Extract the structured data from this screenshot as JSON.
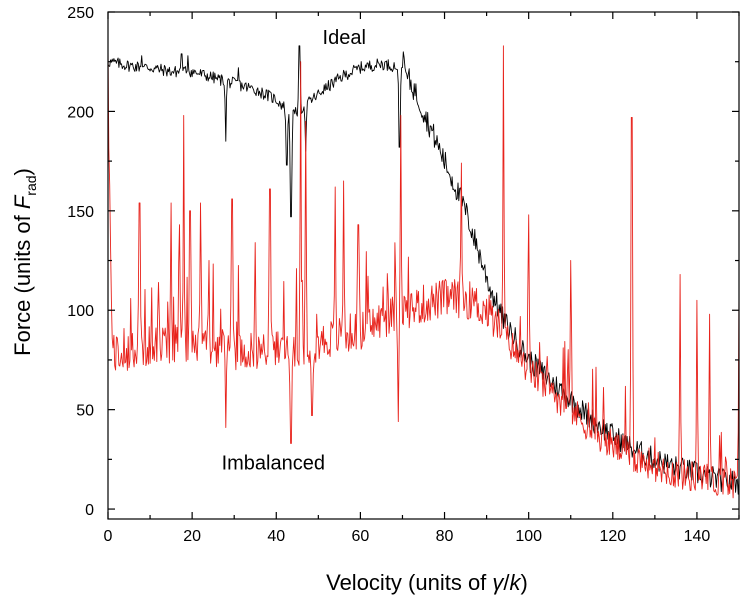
{
  "chart_data": {
    "type": "line",
    "title": "",
    "xlabel": {
      "prefix": "Velocity (units of ",
      "gamma": "γ",
      "slash": "/",
      "k": "k",
      "suffix": ")"
    },
    "ylabel": {
      "prefix": "Force (units of ",
      "F": "F",
      "sub": "rad",
      "suffix": ")"
    },
    "xlim": [
      0,
      150
    ],
    "ylim": [
      -5,
      250
    ],
    "xticks": [
      0,
      20,
      40,
      60,
      80,
      100,
      120,
      140
    ],
    "yticks": [
      0,
      50,
      100,
      150,
      200,
      250
    ],
    "grid": false,
    "legend": "none",
    "annotations": [
      {
        "text": "Ideal",
        "x": 51,
        "y": 234
      },
      {
        "text": "Imbalanced",
        "x": 27,
        "y": 20
      }
    ],
    "series": [
      {
        "label": "Ideal",
        "color": "#000000",
        "base": {
          "x": [
            0,
            5,
            10,
            15,
            20,
            25,
            30,
            35,
            40,
            44,
            48,
            52,
            56,
            60,
            65,
            70,
            73,
            76,
            79,
            82,
            85,
            88,
            91,
            94,
            97,
            100,
            105,
            110,
            115,
            120,
            125,
            130,
            135,
            140,
            145,
            150
          ],
          "y": [
            225,
            223,
            222,
            220,
            220,
            217,
            214,
            211,
            206,
            198,
            205,
            212,
            218,
            222,
            224,
            222,
            210,
            195,
            180,
            165,
            150,
            130,
            110,
            95,
            85,
            75,
            65,
            55,
            45,
            37,
            30,
            25,
            21,
            18,
            15,
            13
          ]
        },
        "spikes": [
          {
            "x": 28.0,
            "y": 185
          },
          {
            "x": 31.0,
            "y": 222
          },
          {
            "x": 42.5,
            "y": 173
          },
          {
            "x": 43.5,
            "y": 147
          },
          {
            "x": 45.5,
            "y": 233
          },
          {
            "x": 47.0,
            "y": 180
          },
          {
            "x": 51.0,
            "y": 210
          },
          {
            "x": 69.3,
            "y": 182
          },
          {
            "x": 70.2,
            "y": 230
          },
          {
            "x": 17.5,
            "y": 229
          },
          {
            "x": 19.0,
            "y": 228
          },
          {
            "x": 8.0,
            "y": 228
          }
        ]
      },
      {
        "label": "Imbalanced",
        "color": "#e8231c",
        "base": {
          "x": [
            0,
            1,
            3,
            10,
            20,
            30,
            40,
            50,
            60,
            65,
            70,
            75,
            80,
            85,
            90,
            95,
            100,
            105,
            110,
            115,
            120,
            125,
            130,
            135,
            140,
            145,
            150
          ],
          "y": [
            205,
            80,
            77,
            82,
            83,
            80,
            80,
            84,
            90,
            95,
            100,
            103,
            106,
            106,
            100,
            85,
            70,
            60,
            50,
            40,
            32,
            26,
            22,
            18,
            16,
            14,
            13
          ]
        },
        "spikes": [
          {
            "x": 7.5,
            "y": 154
          },
          {
            "x": 12.0,
            "y": 114
          },
          {
            "x": 15.0,
            "y": 154
          },
          {
            "x": 17.0,
            "y": 143
          },
          {
            "x": 18.0,
            "y": 198
          },
          {
            "x": 19.5,
            "y": 150
          },
          {
            "x": 22.0,
            "y": 154
          },
          {
            "x": 24.0,
            "y": 125
          },
          {
            "x": 28.0,
            "y": 41
          },
          {
            "x": 29.5,
            "y": 156
          },
          {
            "x": 35.0,
            "y": 134
          },
          {
            "x": 38.5,
            "y": 161
          },
          {
            "x": 43.5,
            "y": 33
          },
          {
            "x": 45.8,
            "y": 225
          },
          {
            "x": 47.0,
            "y": 195
          },
          {
            "x": 48.5,
            "y": 47
          },
          {
            "x": 54.0,
            "y": 162
          },
          {
            "x": 56.0,
            "y": 165
          },
          {
            "x": 59.5,
            "y": 143
          },
          {
            "x": 69.0,
            "y": 44
          },
          {
            "x": 69.6,
            "y": 198
          },
          {
            "x": 84.0,
            "y": 174
          },
          {
            "x": 94.0,
            "y": 233
          },
          {
            "x": 100.0,
            "y": 148
          },
          {
            "x": 110.0,
            "y": 125
          },
          {
            "x": 124.5,
            "y": 197
          },
          {
            "x": 136.0,
            "y": 118
          },
          {
            "x": 140.0,
            "y": 105
          },
          {
            "x": 143.0,
            "y": 98
          },
          {
            "x": 150.0,
            "y": 110
          }
        ]
      }
    ]
  }
}
